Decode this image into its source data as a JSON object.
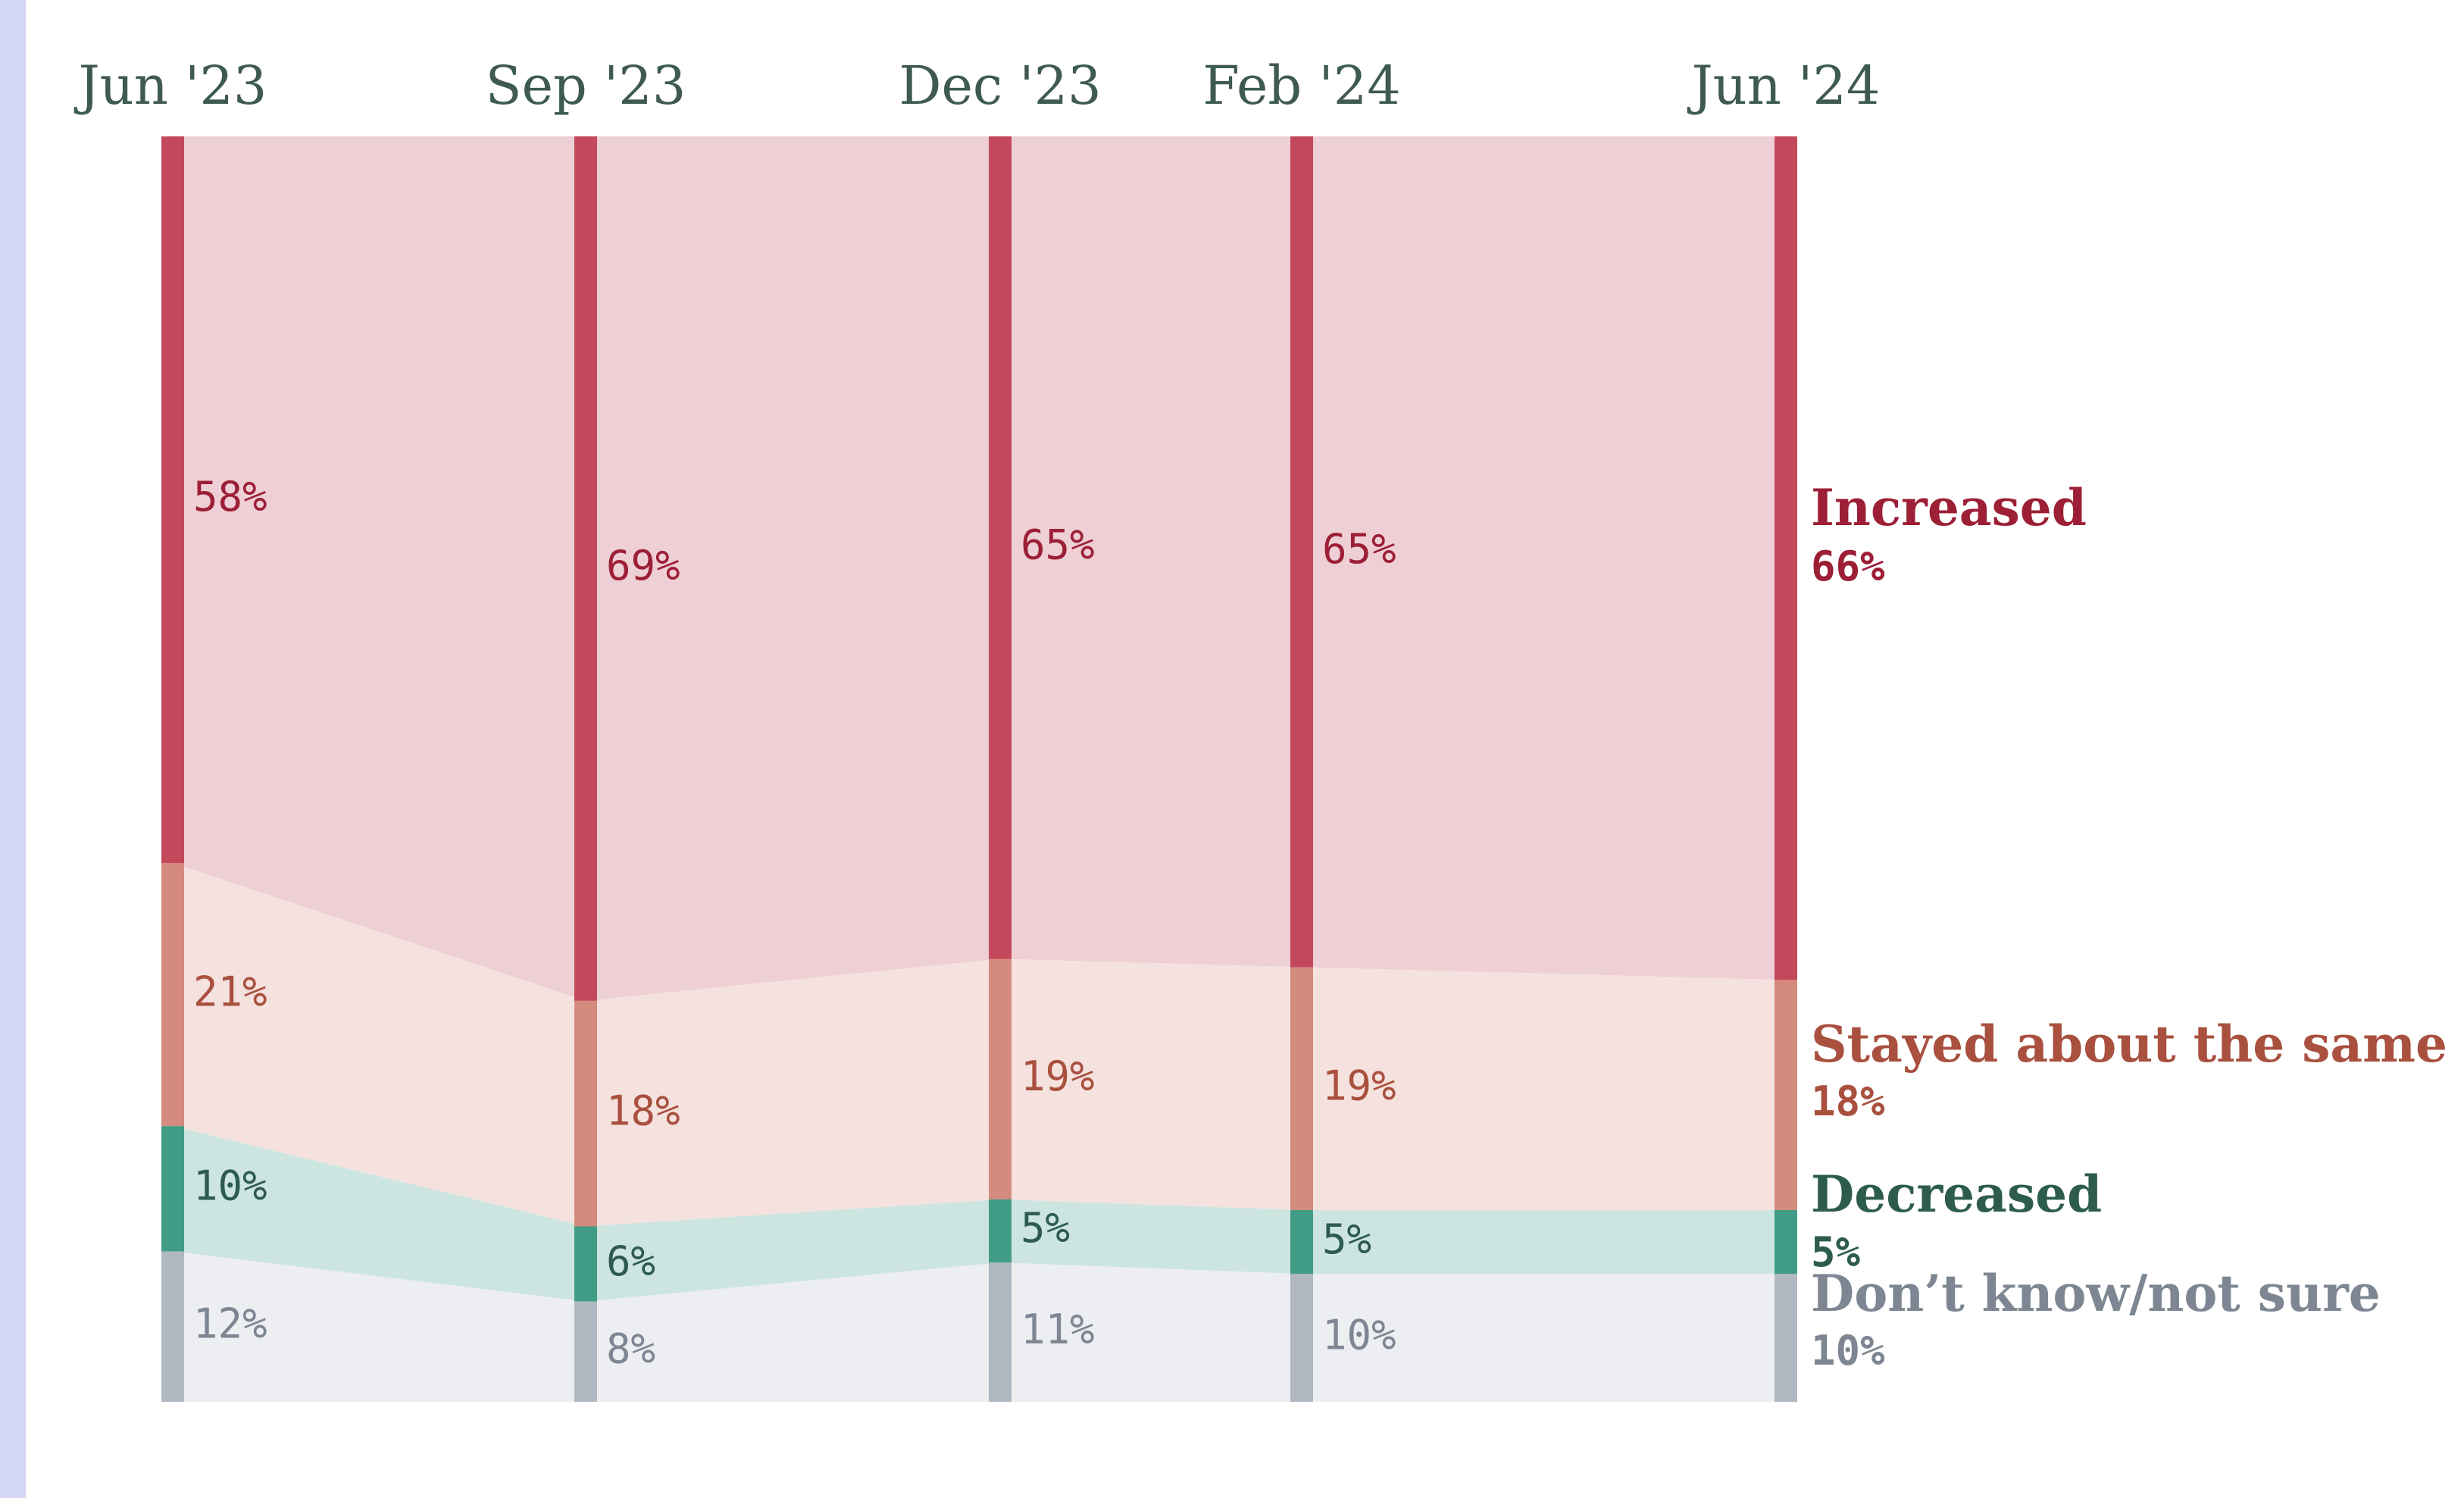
{
  "colors": {
    "side_accent": "#d4d7f3",
    "date_text": "#3e5a52"
  },
  "chart_data": {
    "type": "area",
    "x": [
      "Jun '23",
      "Sep '23",
      "Dec '23",
      "Feb '24",
      "Jun '24"
    ],
    "ylim": [
      0,
      100
    ],
    "grid": false,
    "legend": "right",
    "series": [
      {
        "name": "Increased",
        "values": [
          58,
          69,
          65,
          65,
          66
        ],
        "latest_label": "66%",
        "colors": {
          "bar": "#c4485c",
          "band": "#eecfd5",
          "label": "#9c1f36"
        }
      },
      {
        "name": "Stayed about the same",
        "values": [
          21,
          18,
          19,
          19,
          18
        ],
        "latest_label": "18%",
        "colors": {
          "bar": "#d58a7e",
          "band": "#f5e2de",
          "label": "#a9503f"
        }
      },
      {
        "name": "Decreased",
        "values": [
          10,
          6,
          5,
          5,
          5
        ],
        "latest_label": "5%",
        "colors": {
          "bar": "#419c85",
          "band": "#cde5e0",
          "label": "#2d5c4f"
        }
      },
      {
        "name": "Don’t know/not sure",
        "values": [
          12,
          8,
          11,
          10,
          10
        ],
        "latest_label": "10%",
        "colors": {
          "bar": "#b0b8c2",
          "band": "#eceef1",
          "label": "#7d8692"
        }
      }
    ]
  }
}
